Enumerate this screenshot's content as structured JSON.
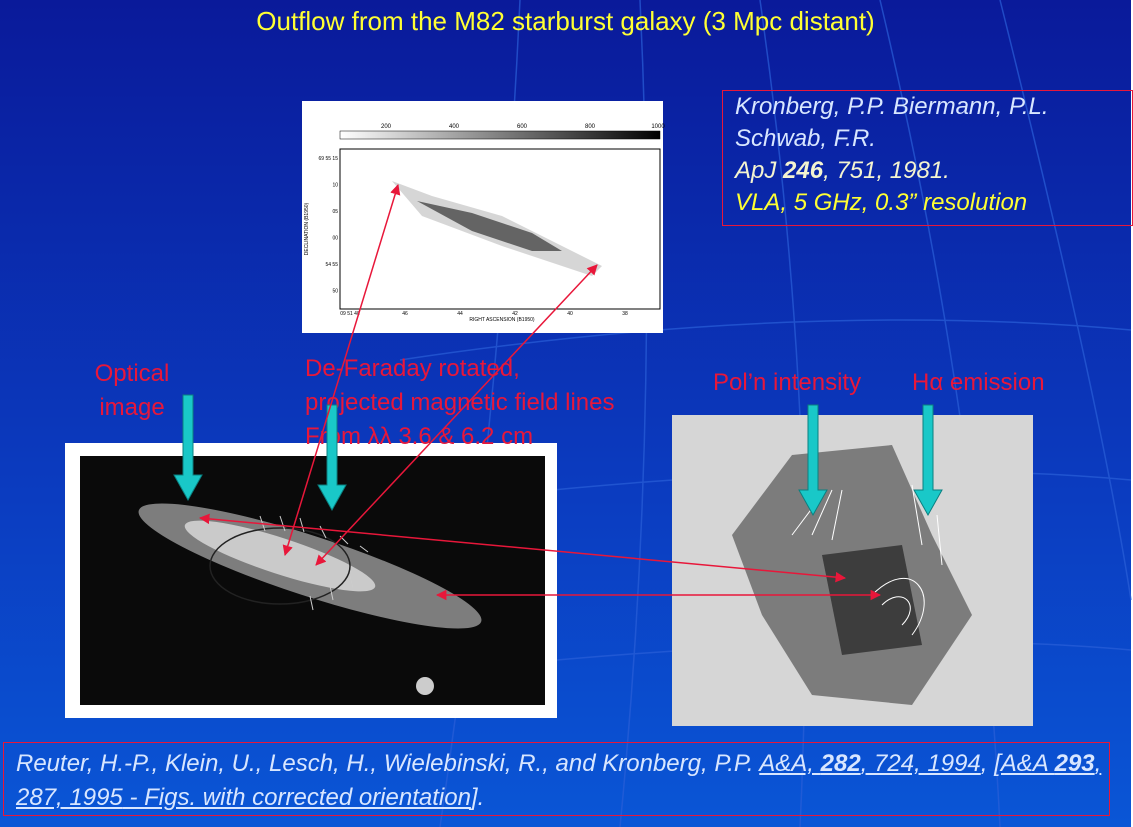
{
  "title": "Outflow from the M82 starburst galaxy (3 Mpc distant)",
  "reference_box": {
    "line1": "Kronberg, P.P. Biermann, P.L.",
    "line2": "Schwab, F.R.",
    "line3": {
      "journal": "ApJ ",
      "volume": "246",
      "rest": ", 751, 1981."
    },
    "line4": "VLA, 5 GHz, 0.3” resolution"
  },
  "labels": {
    "optical_image": [
      "Optical",
      "image"
    ],
    "field_lines": [
      "De-Faraday rotated,",
      "projected magnetic field lines",
      "From λλ 3.6 & 6.2 cm"
    ],
    "pol_intensity": "Pol’n intensity",
    "h_alpha": "Hα emission"
  },
  "radio_map": {
    "colorbar_ticks": [
      "200",
      "400",
      "600",
      "800",
      "1000"
    ],
    "dec_ticks": [
      "69 55 15",
      "10",
      "05",
      "00",
      "54 55",
      "50"
    ],
    "ra_ticks": [
      "09 51 48",
      "46",
      "44",
      "42",
      "40",
      "38"
    ],
    "y_label": "DECLINATION (B1950)",
    "x_label": "RIGHT ASCENSION (B1950)"
  },
  "citation": {
    "authors": "Reuter, H.-P., Klein, U., Lesch, H., Wielebinski, R., and Kronberg, P.P. ",
    "ref1_journal": "A&A, ",
    "ref1_volume": "282",
    "ref1_rest": ", 724, 1994",
    "sep": ",  ",
    "ref2_journal": "[A&A ",
    "ref2_volume": "293",
    "ref2_rest": ", 287, 1995",
    "note": " - Figs. with corrected orientation",
    "end": "]."
  }
}
